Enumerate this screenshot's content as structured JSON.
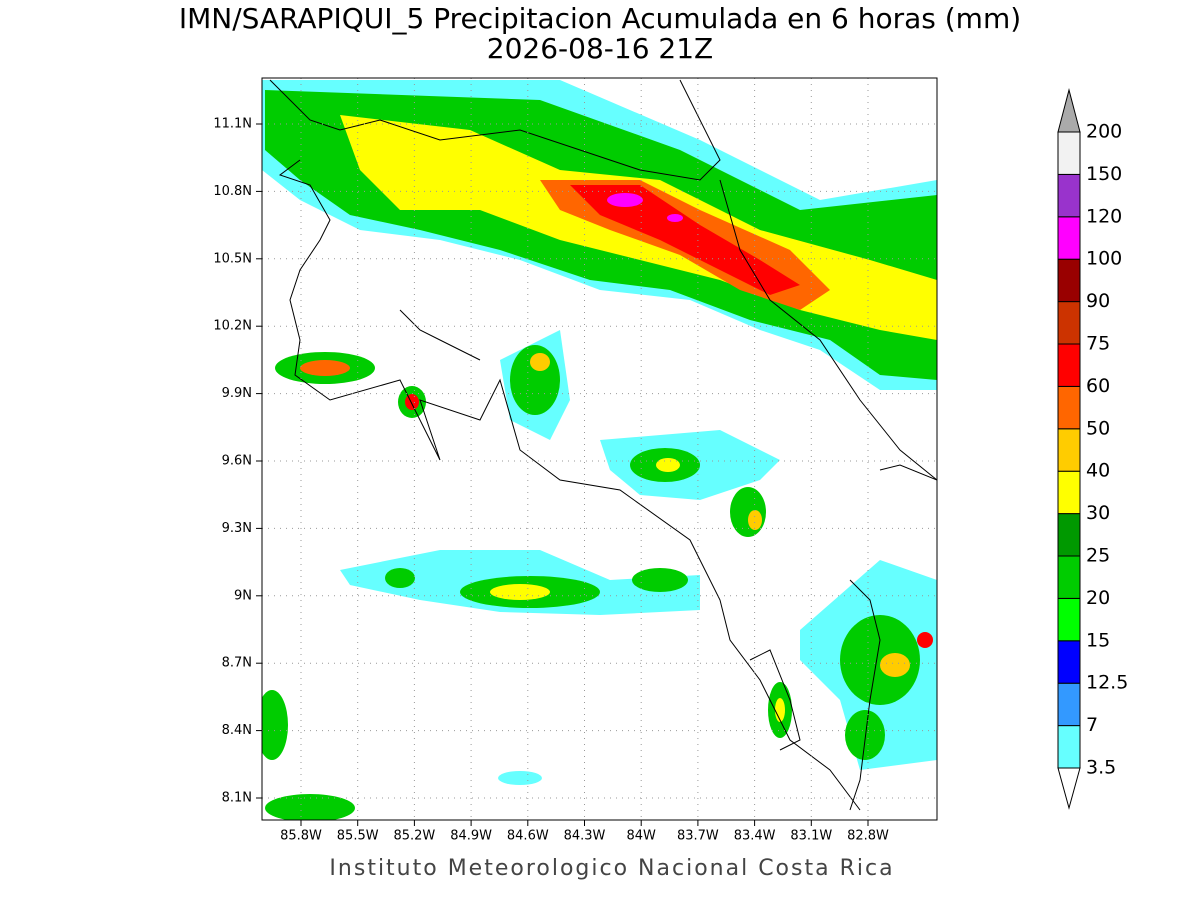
{
  "header": {
    "title": "IMN/SARAPIQUI_5 Precipitacion Acumulada en 6 horas (mm)",
    "subtitle": "2026-08-16 21Z"
  },
  "map": {
    "lon_ticks": [
      "85.8W",
      "85.5W",
      "85.2W",
      "84.9W",
      "84.6W",
      "84.3W",
      "84W",
      "83.7W",
      "83.4W",
      "83.1W",
      "82.8W"
    ],
    "lat_ticks": [
      "11.1N",
      "10.8N",
      "10.5N",
      "10.2N",
      "9.9N",
      "9.6N",
      "9.3N",
      "9N",
      "8.7N",
      "8.4N",
      "8.1N"
    ]
  },
  "colorbar": {
    "labels": [
      "3.5",
      "7",
      "12.5",
      "15",
      "20",
      "25",
      "30",
      "40",
      "50",
      "60",
      "75",
      "90",
      "100",
      "120",
      "150",
      "200"
    ],
    "colors": [
      "#66ffff",
      "#3399ff",
      "#0000ff",
      "#00ff00",
      "#00cc00",
      "#009900",
      "#ffff00",
      "#ffcc00",
      "#ff6600",
      "#ff0000",
      "#cc3300",
      "#990000",
      "#ff00ff",
      "#9933cc",
      "#f2f2f2"
    ],
    "below_color": "#ffffff",
    "above_color": "#aaaaaa"
  },
  "footer": "Instituto Meteorologico Nacional Costa Rica"
}
